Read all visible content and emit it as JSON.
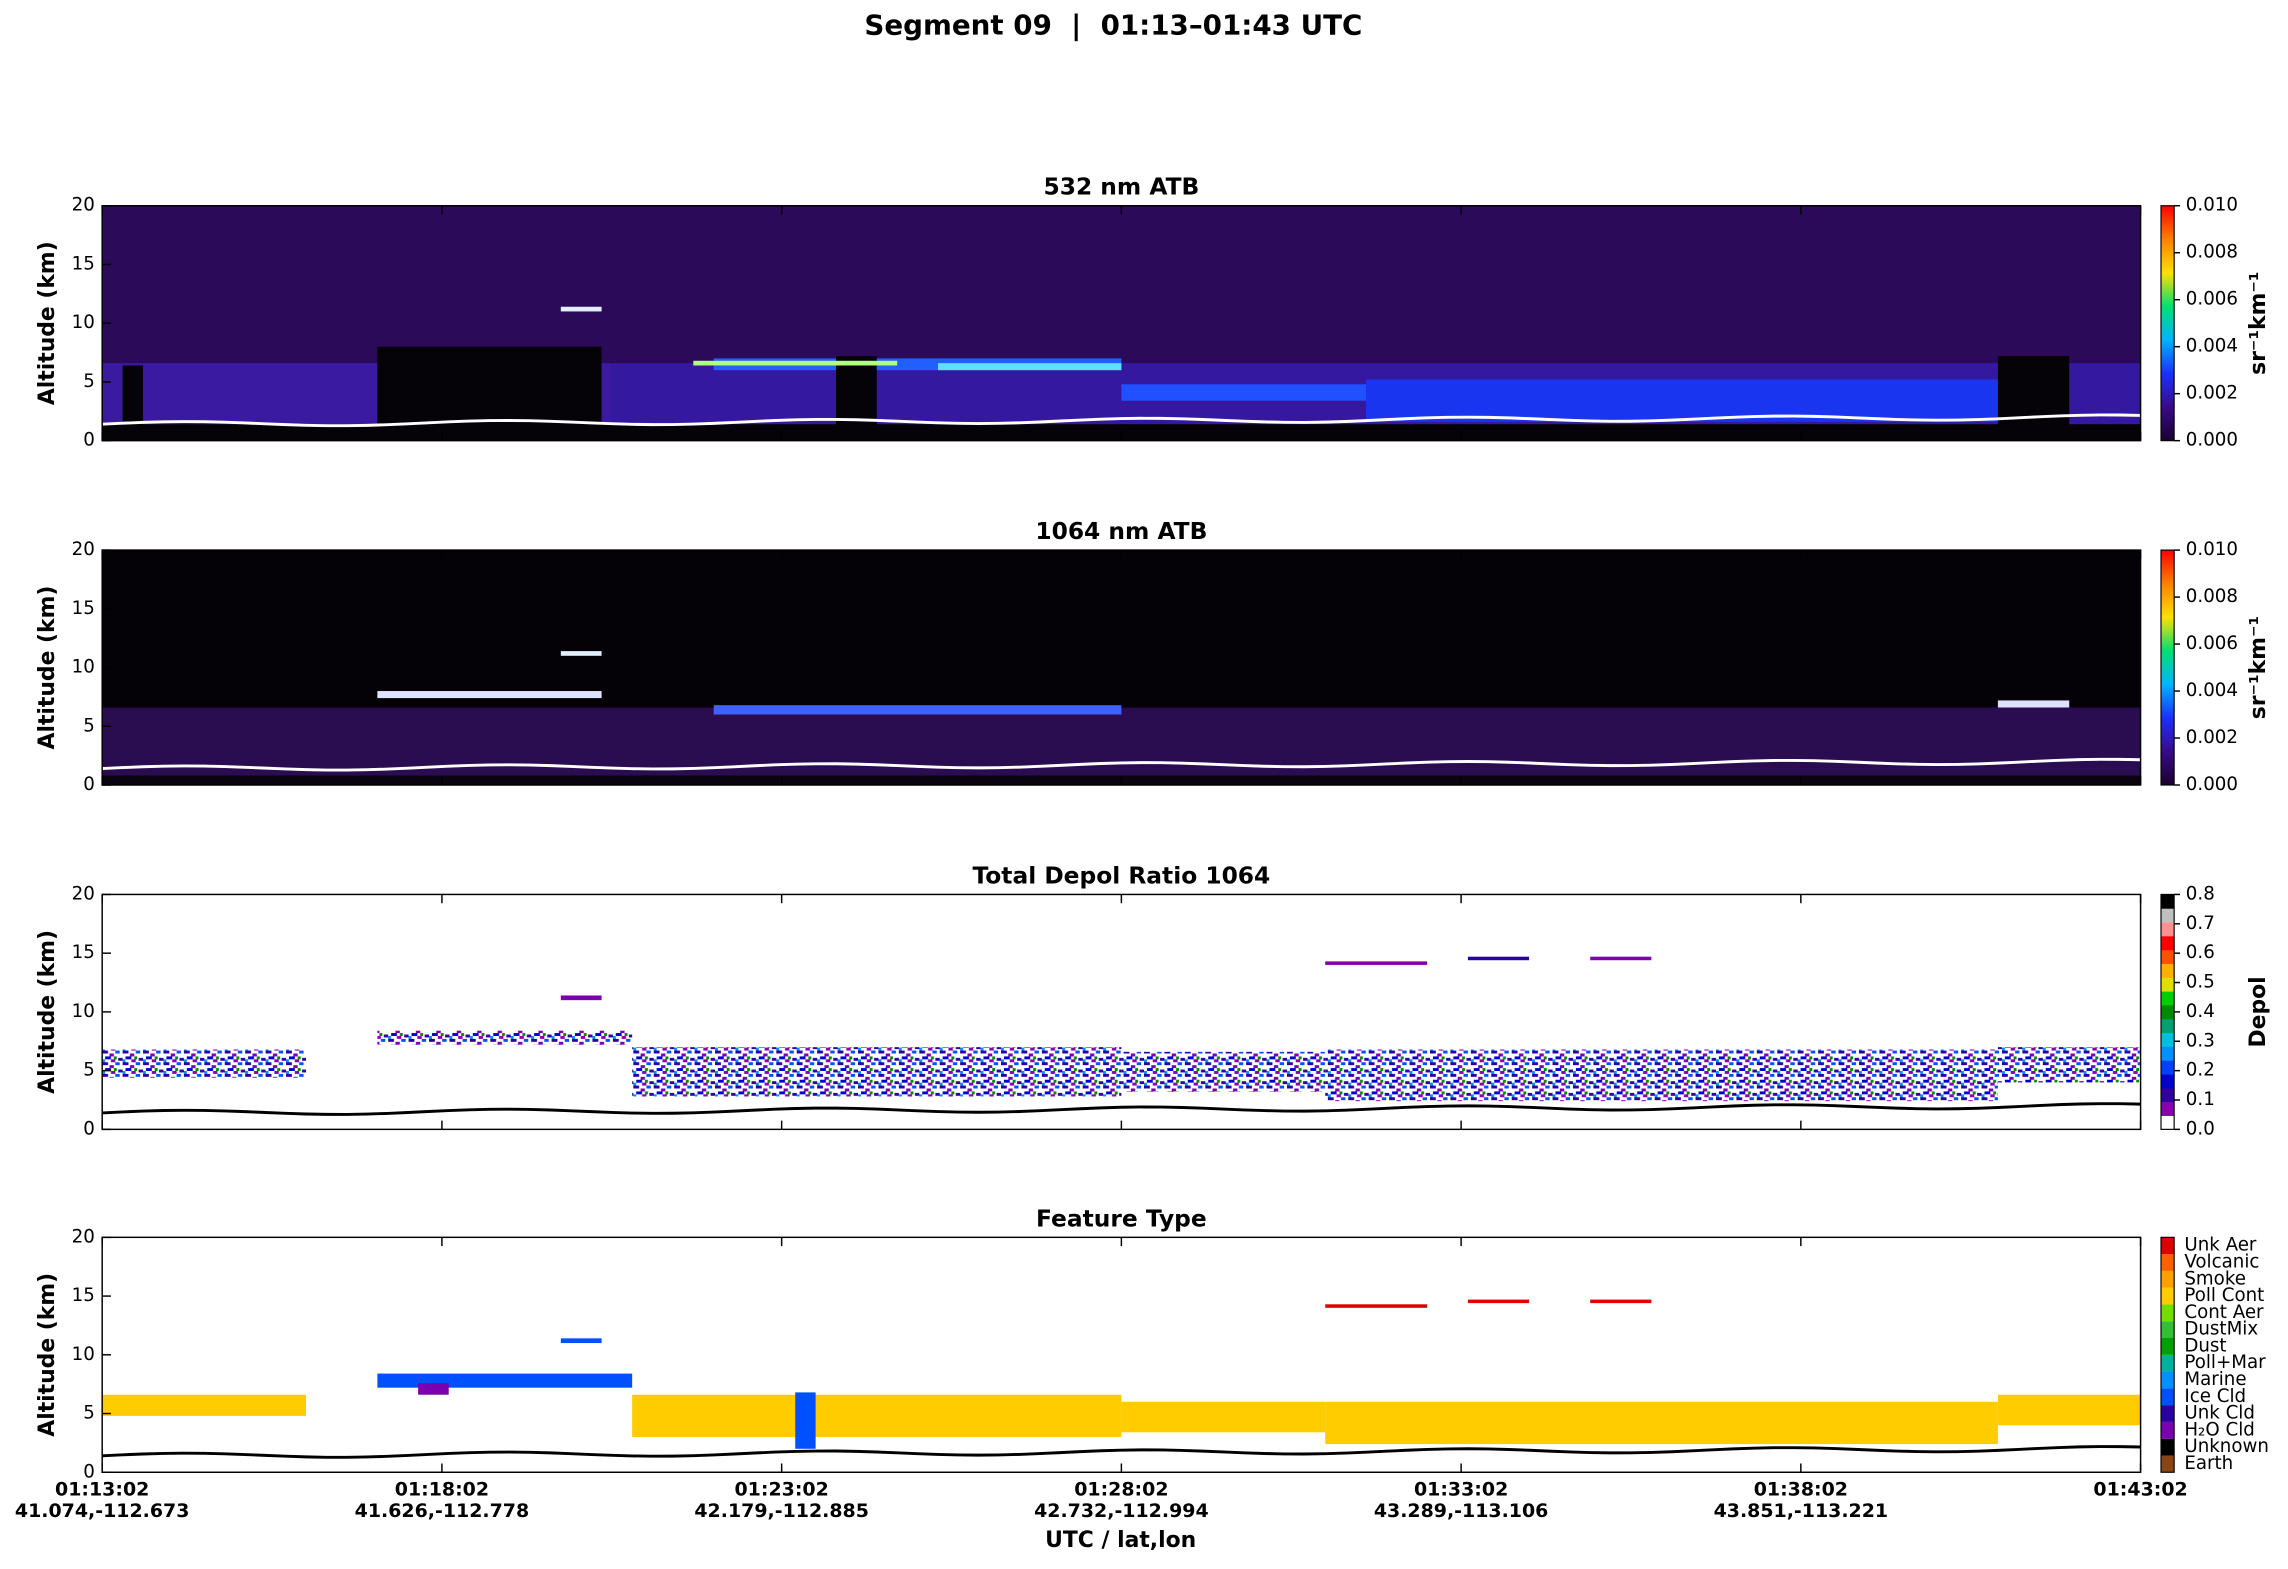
{
  "chart_data": {
    "type": "lidar-curtain",
    "title": "Segment 09  |  01:13–01:43 UTC",
    "xlabel": "UTC / lat,lon",
    "xlim": [
      "01:13:02",
      "01:43:02"
    ],
    "xticks": [
      {
        "value": "01:13:02",
        "label": "41.074,-112.673"
      },
      {
        "value": "01:18:02",
        "label": "41.626,-112.778"
      },
      {
        "value": "01:23:02",
        "label": "42.179,-112.885"
      },
      {
        "value": "01:28:02",
        "label": "42.732,-112.994"
      },
      {
        "value": "01:33:02",
        "label": "43.289,-113.106"
      },
      {
        "value": "01:38:02",
        "label": "43.851,-113.221"
      },
      {
        "value": "01:43:02",
        "label": ""
      }
    ],
    "panels": [
      {
        "title": "532 nm ATB",
        "ylabel": "Altitude (km)",
        "ylim": [
          0,
          20
        ],
        "yticks": [
          0,
          5,
          10,
          15,
          20
        ],
        "colorbar": {
          "label": "sr⁻¹km⁻¹",
          "lim": [
            0,
            0.01
          ],
          "ticks": [
            {
              "value": 0,
              "label": "0.000"
            },
            {
              "value": 0.002,
              "label": "0.002"
            },
            {
              "value": 0.004,
              "label": "0.004"
            },
            {
              "value": 0.006,
              "label": "0.006"
            },
            {
              "value": 0.008,
              "label": "0.008"
            },
            {
              "value": 0.01,
              "label": "0.010"
            }
          ],
          "colors": [
            "#1a0030",
            "#3a0a8a",
            "#1a30ff",
            "#00b4ff",
            "#00e070",
            "#ffe000",
            "#ff8000",
            "#ff0000"
          ]
        }
      },
      {
        "title": "1064 nm ATB",
        "ylabel": "Altitude (km)",
        "ylim": [
          0,
          20
        ],
        "yticks": [
          0,
          5,
          10,
          15,
          20
        ],
        "colorbar": {
          "label": "sr⁻¹km⁻¹",
          "lim": [
            0,
            0.01
          ],
          "ticks": [
            {
              "value": 0,
              "label": "0.000"
            },
            {
              "value": 0.002,
              "label": "0.002"
            },
            {
              "value": 0.004,
              "label": "0.004"
            },
            {
              "value": 0.006,
              "label": "0.006"
            },
            {
              "value": 0.008,
              "label": "0.008"
            },
            {
              "value": 0.01,
              "label": "0.010"
            }
          ],
          "colors": [
            "#1a0030",
            "#3a0a8a",
            "#1a30ff",
            "#00b4ff",
            "#00e070",
            "#ffe000",
            "#ff8000",
            "#ff0000"
          ]
        }
      },
      {
        "title": "Total Depol Ratio 1064",
        "ylabel": "Altitude (km)",
        "ylim": [
          0,
          20
        ],
        "yticks": [
          0,
          5,
          10,
          15,
          20
        ],
        "colorbar": {
          "label": "Depol",
          "lim": [
            0,
            0.8
          ],
          "ticks": [
            {
              "value": 0,
              "label": "0.0"
            },
            {
              "value": 0.1,
              "label": "0.1"
            },
            {
              "value": 0.2,
              "label": "0.2"
            },
            {
              "value": 0.3,
              "label": "0.3"
            },
            {
              "value": 0.4,
              "label": "0.4"
            },
            {
              "value": 0.5,
              "label": "0.5"
            },
            {
              "value": 0.6,
              "label": "0.6"
            },
            {
              "value": 0.7,
              "label": "0.7"
            },
            {
              "value": 0.8,
              "label": "0.8"
            }
          ],
          "colors": [
            "#ffffff",
            "#8a00b0",
            "#3000a0",
            "#0000d0",
            "#0040ff",
            "#0090ff",
            "#00c0e0",
            "#00a070",
            "#008a00",
            "#00d000",
            "#e0e000",
            "#ffb000",
            "#ff5000",
            "#ff0000",
            "#ff9090",
            "#c0c0c0",
            "#000000"
          ]
        }
      },
      {
        "title": "Feature Type",
        "ylabel": "Altitude (km)",
        "ylim": [
          0,
          20
        ],
        "yticks": [
          0,
          5,
          10,
          15,
          20
        ],
        "colorbar": {
          "categories": [
            "Earth",
            "Unknown",
            "H₂O Cld",
            "Unk Cld",
            "Ice Cld",
            "Marine",
            "Poll+Mar",
            "Dust",
            "DustMix",
            "Cont Aer",
            "Poll Cont",
            "Smoke",
            "Volcanic",
            "Unk Aer"
          ],
          "colors": [
            "#8b4513",
            "#000000",
            "#7a00b0",
            "#2a00a0",
            "#0050ff",
            "#0090ff",
            "#00b0a0",
            "#00a000",
            "#30c030",
            "#70e000",
            "#ffcc00",
            "#ffa000",
            "#ff6000",
            "#e00000"
          ]
        }
      }
    ]
  }
}
